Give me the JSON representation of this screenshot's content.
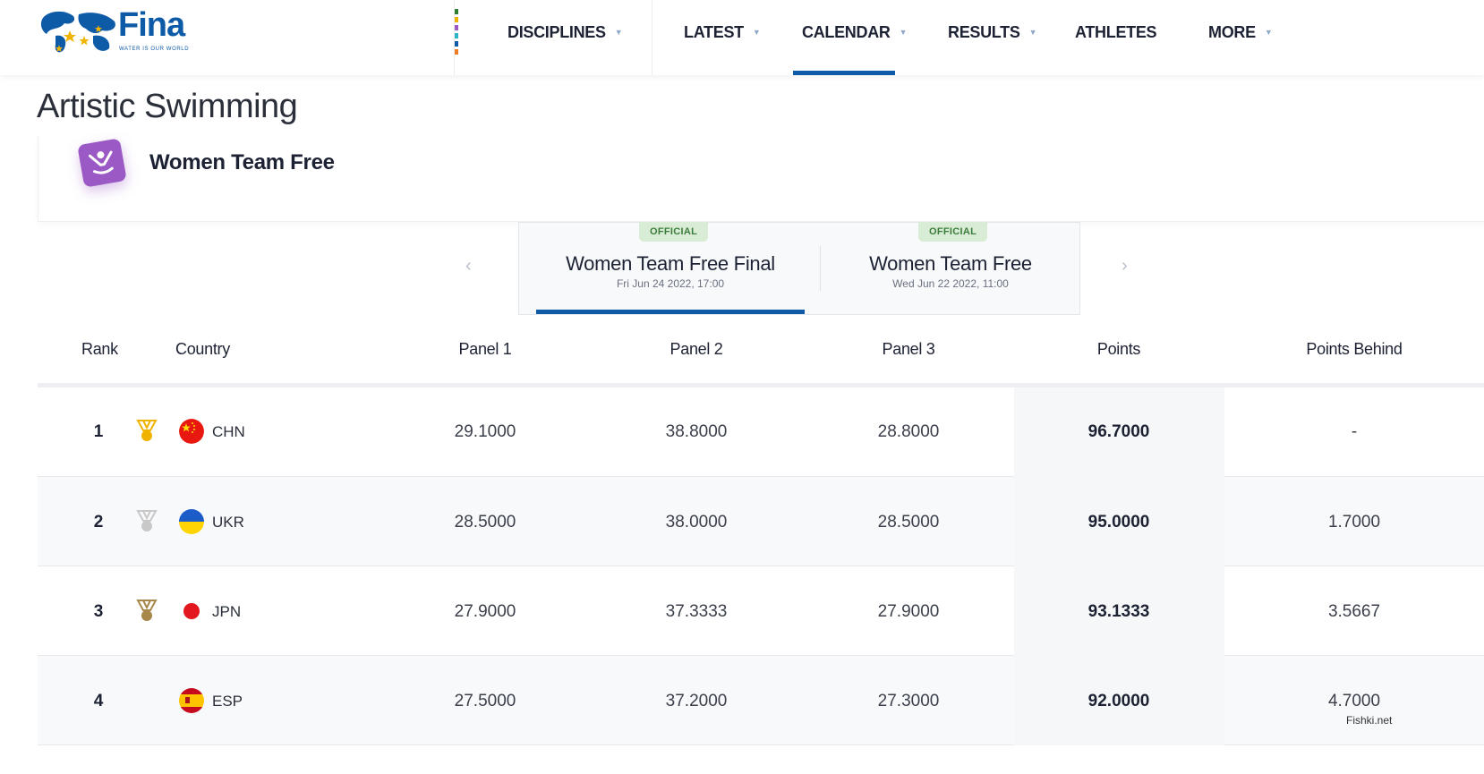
{
  "brand": {
    "name": "Fina",
    "tagline": "WATER IS OUR WORLD"
  },
  "nav": {
    "items": [
      {
        "label": "DISCIPLINES",
        "has_dropdown": true
      },
      {
        "label": "LATEST",
        "has_dropdown": true
      },
      {
        "label": "CALENDAR",
        "has_dropdown": true,
        "active": true
      },
      {
        "label": "RESULTS",
        "has_dropdown": true
      },
      {
        "label": "ATHLETES",
        "has_dropdown": false
      },
      {
        "label": "MORE",
        "has_dropdown": true
      }
    ]
  },
  "page": {
    "title": "Artistic Swimming"
  },
  "event": {
    "title": "Women Team Free",
    "icon": "artistic-swimming-icon"
  },
  "phases": [
    {
      "status": "OFFICIAL",
      "name": "Women Team Free Final",
      "date": "Fri Jun 24 2022, 17:00",
      "active": true
    },
    {
      "status": "OFFICIAL",
      "name": "Women Team Free",
      "date": "Wed Jun 22 2022, 11:00",
      "active": false
    }
  ],
  "table": {
    "headers": {
      "rank": "Rank",
      "country": "Country",
      "panel1": "Panel 1",
      "panel2": "Panel 2",
      "panel3": "Panel 3",
      "points": "Points",
      "behind": "Points Behind"
    },
    "rows": [
      {
        "rank": "1",
        "medal": "gold",
        "flag": "china-flag",
        "country": "CHN",
        "panel1": "29.1000",
        "panel2": "38.8000",
        "panel3": "28.8000",
        "points": "96.7000",
        "behind": "-"
      },
      {
        "rank": "2",
        "medal": "silver",
        "flag": "ukraine-flag",
        "country": "UKR",
        "panel1": "28.5000",
        "panel2": "38.0000",
        "panel3": "28.5000",
        "points": "95.0000",
        "behind": "1.7000"
      },
      {
        "rank": "3",
        "medal": "bronze",
        "flag": "japan-flag",
        "country": "JPN",
        "panel1": "27.9000",
        "panel2": "37.3333",
        "panel3": "27.9000",
        "points": "93.1333",
        "behind": "3.5667"
      },
      {
        "rank": "4",
        "medal": "",
        "flag": "spain-flag",
        "country": "ESP",
        "panel1": "27.5000",
        "panel2": "37.2000",
        "panel3": "27.3000",
        "points": "92.0000",
        "behind": "4.7000"
      }
    ]
  },
  "colors": {
    "brand_blue": "#0d5aa7",
    "official_green": "#3b7d3a",
    "event_purple": "#9b59c6",
    "gold": "#f0b400",
    "silver": "#c8c8c8",
    "bronze": "#a8884a"
  },
  "watermark": "Fishki.net"
}
